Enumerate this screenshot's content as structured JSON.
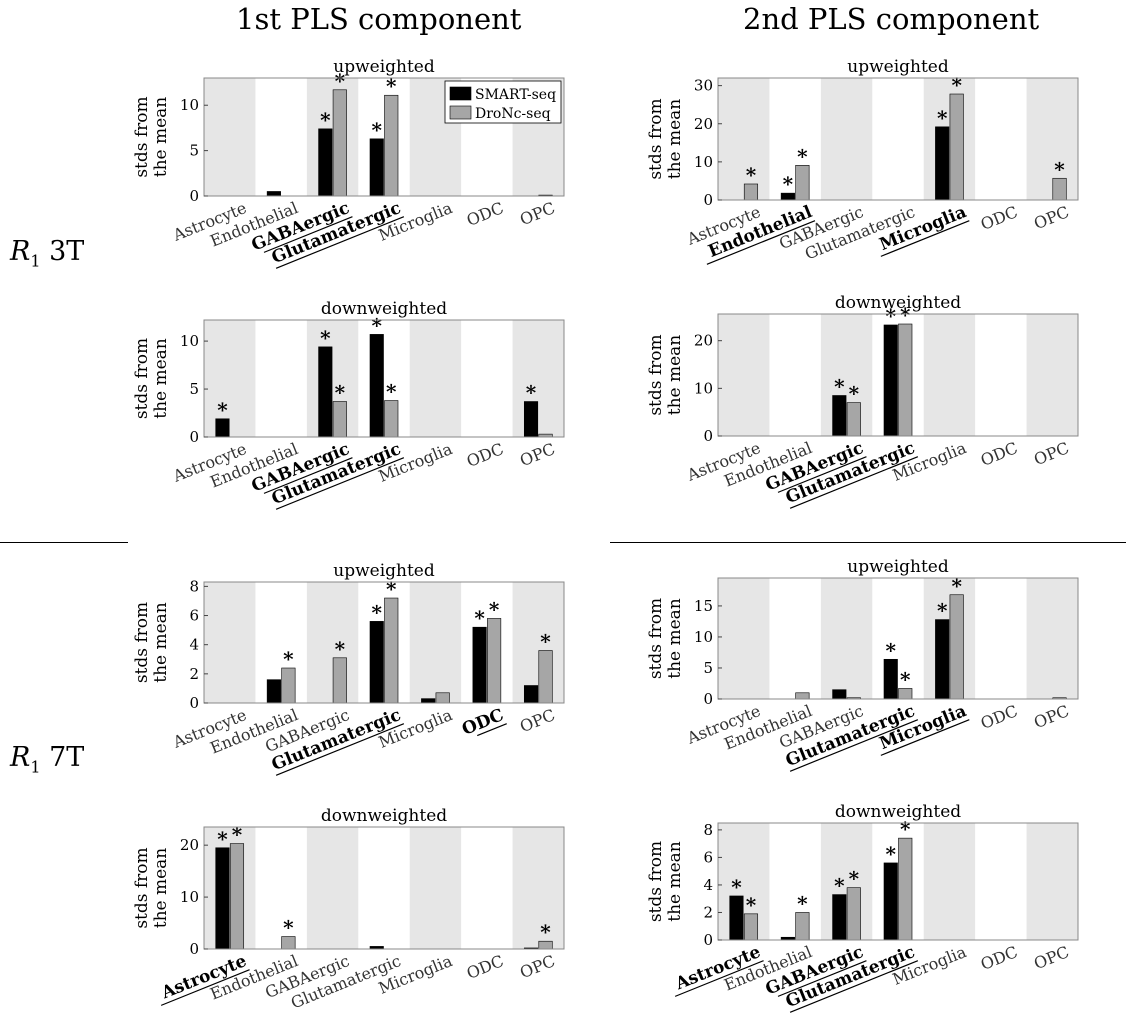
{
  "column_titles": [
    "1st PLS component",
    "2nd PLS component"
  ],
  "row_labels": [
    {
      "var": "R",
      "sub": "1",
      "rest": " 3T"
    },
    {
      "var": "R",
      "sub": "1",
      "rest": " 7T"
    }
  ],
  "colors": {
    "smart": "#000000",
    "dronc": "#a6a6a6",
    "shade": "#e6e6e6"
  },
  "chart_data": [
    {
      "type": "bar",
      "title": "upweighted",
      "ylabel": [
        "stds from",
        "the mean"
      ],
      "categories": [
        "Astrocyte",
        "Endothelial",
        "GABAergic",
        "Glutamatergic",
        "Microglia",
        "ODC",
        "OPC"
      ],
      "highlight": [
        "GABAergic",
        "Glutamatergic"
      ],
      "ylim": [
        0,
        13
      ],
      "yticks": [
        0,
        5,
        10
      ],
      "legend": {
        "position": "top-right",
        "entries": [
          "SMART-seq",
          "DroNc-seq"
        ]
      },
      "series": [
        {
          "name": "SMART-seq",
          "values": [
            0,
            0.5,
            7.4,
            6.3,
            0,
            0,
            0
          ],
          "sig": [
            false,
            false,
            true,
            true,
            false,
            false,
            false
          ]
        },
        {
          "name": "DroNc-seq",
          "values": [
            0,
            0,
            11.7,
            11.1,
            0,
            0,
            0.1
          ],
          "sig": [
            false,
            false,
            true,
            true,
            false,
            false,
            false
          ]
        }
      ]
    },
    {
      "type": "bar",
      "title": "upweighted",
      "ylabel": [
        "stds from",
        "the mean"
      ],
      "categories": [
        "Astrocyte",
        "Endothelial",
        "GABAergic",
        "Glutamatergic",
        "Microglia",
        "ODC",
        "OPC"
      ],
      "highlight": [
        "Endothelial",
        "Microglia"
      ],
      "ylim": [
        0,
        32
      ],
      "yticks": [
        0,
        10,
        20,
        30
      ],
      "series": [
        {
          "name": "SMART-seq",
          "values": [
            0,
            1.8,
            0,
            0,
            19.2,
            0,
            0
          ],
          "sig": [
            false,
            true,
            false,
            false,
            true,
            false,
            false
          ]
        },
        {
          "name": "DroNc-seq",
          "values": [
            4.2,
            9.1,
            0,
            0,
            27.8,
            0,
            5.7
          ],
          "sig": [
            true,
            true,
            false,
            false,
            true,
            false,
            true
          ]
        }
      ]
    },
    {
      "type": "bar",
      "title": "downweighted",
      "ylabel": [
        "stds from",
        "the mean"
      ],
      "categories": [
        "Astrocyte",
        "Endothelial",
        "GABAergic",
        "Glutamatergic",
        "Microglia",
        "ODC",
        "OPC"
      ],
      "highlight": [
        "GABAergic",
        "Glutamatergic"
      ],
      "ylim": [
        0,
        12.2
      ],
      "yticks": [
        0,
        5,
        10
      ],
      "series": [
        {
          "name": "SMART-seq",
          "values": [
            1.9,
            0,
            9.4,
            10.7,
            0,
            0,
            3.7
          ],
          "sig": [
            true,
            false,
            true,
            true,
            false,
            false,
            true
          ]
        },
        {
          "name": "DroNc-seq",
          "values": [
            0,
            0,
            3.7,
            3.8,
            0,
            0,
            0.3
          ],
          "sig": [
            false,
            false,
            true,
            true,
            false,
            false,
            false
          ]
        }
      ]
    },
    {
      "type": "bar",
      "title": "downweighted",
      "ylabel": [
        "stds from",
        "the mean"
      ],
      "categories": [
        "Astrocyte",
        "Endothelial",
        "GABAergic",
        "Glutamatergic",
        "Microglia",
        "ODC",
        "OPC"
      ],
      "highlight": [
        "GABAergic",
        "Glutamatergic"
      ],
      "ylim": [
        0,
        25.6
      ],
      "yticks": [
        0,
        10,
        20
      ],
      "series": [
        {
          "name": "SMART-seq",
          "values": [
            0,
            0,
            8.5,
            23.3,
            0,
            0,
            0
          ],
          "sig": [
            false,
            false,
            true,
            true,
            false,
            false,
            false
          ]
        },
        {
          "name": "DroNc-seq",
          "values": [
            0,
            0,
            7.0,
            23.5,
            0,
            0,
            0
          ],
          "sig": [
            false,
            false,
            true,
            true,
            false,
            false,
            false
          ]
        }
      ]
    },
    {
      "type": "bar",
      "title": "upweighted",
      "ylabel": [
        "stds from",
        "the mean"
      ],
      "categories": [
        "Astrocyte",
        "Endothelial",
        "GABAergic",
        "Glutamatergic",
        "Microglia",
        "ODC",
        "OPC"
      ],
      "highlight": [
        "Glutamatergic",
        "ODC"
      ],
      "ylim": [
        0,
        8.3
      ],
      "yticks": [
        0,
        2,
        4,
        6,
        8
      ],
      "series": [
        {
          "name": "SMART-seq",
          "values": [
            0,
            1.6,
            0,
            5.6,
            0.3,
            5.2,
            1.2
          ],
          "sig": [
            false,
            false,
            false,
            true,
            false,
            true,
            false
          ]
        },
        {
          "name": "DroNc-seq",
          "values": [
            0,
            2.4,
            3.1,
            7.2,
            0.7,
            5.8,
            3.6
          ],
          "sig": [
            false,
            true,
            true,
            true,
            false,
            true,
            true
          ]
        }
      ]
    },
    {
      "type": "bar",
      "title": "upweighted",
      "ylabel": [
        "stds from",
        "the mean"
      ],
      "categories": [
        "Astrocyte",
        "Endothelial",
        "GABAergic",
        "Glutamatergic",
        "Microglia",
        "ODC",
        "OPC"
      ],
      "highlight": [
        "Glutamatergic",
        "Microglia"
      ],
      "ylim": [
        0,
        19.5
      ],
      "yticks": [
        0,
        5,
        10,
        15
      ],
      "series": [
        {
          "name": "SMART-seq",
          "values": [
            0,
            0,
            1.5,
            6.4,
            12.8,
            0,
            0
          ],
          "sig": [
            false,
            false,
            false,
            true,
            true,
            false,
            false
          ]
        },
        {
          "name": "DroNc-seq",
          "values": [
            0,
            1.0,
            0.2,
            1.7,
            16.8,
            0,
            0.2
          ],
          "sig": [
            false,
            false,
            false,
            true,
            true,
            false,
            false
          ]
        }
      ]
    },
    {
      "type": "bar",
      "title": "downweighted",
      "ylabel": [
        "stds from",
        "the mean"
      ],
      "categories": [
        "Astrocyte",
        "Endothelial",
        "GABAergic",
        "Glutamatergic",
        "Microglia",
        "ODC",
        "OPC"
      ],
      "highlight": [
        "Astrocyte"
      ],
      "ylim": [
        0,
        23.5
      ],
      "yticks": [
        0,
        10,
        20
      ],
      "series": [
        {
          "name": "SMART-seq",
          "values": [
            19.5,
            0,
            0,
            0.5,
            0,
            0,
            0.2
          ],
          "sig": [
            true,
            false,
            false,
            false,
            false,
            false,
            false
          ]
        },
        {
          "name": "DroNc-seq",
          "values": [
            20.3,
            2.4,
            0,
            0,
            0,
            0,
            1.5
          ],
          "sig": [
            true,
            true,
            false,
            false,
            false,
            false,
            true
          ]
        }
      ]
    },
    {
      "type": "bar",
      "title": "downweighted",
      "ylabel": [
        "stds from",
        "the mean"
      ],
      "categories": [
        "Astrocyte",
        "Endothelial",
        "GABAergic",
        "Glutamatergic",
        "Microglia",
        "ODC",
        "OPC"
      ],
      "highlight": [
        "Astrocyte",
        "GABAergic",
        "Glutamatergic"
      ],
      "ylim": [
        0,
        8.5
      ],
      "yticks": [
        0,
        2,
        4,
        6,
        8
      ],
      "series": [
        {
          "name": "SMART-seq",
          "values": [
            3.2,
            0.2,
            3.3,
            5.6,
            0,
            0,
            0
          ],
          "sig": [
            true,
            false,
            true,
            true,
            false,
            false,
            false
          ]
        },
        {
          "name": "DroNc-seq",
          "values": [
            1.9,
            2.0,
            3.8,
            7.4,
            0,
            0,
            0
          ],
          "sig": [
            true,
            true,
            true,
            true,
            false,
            false,
            false
          ]
        }
      ]
    }
  ]
}
